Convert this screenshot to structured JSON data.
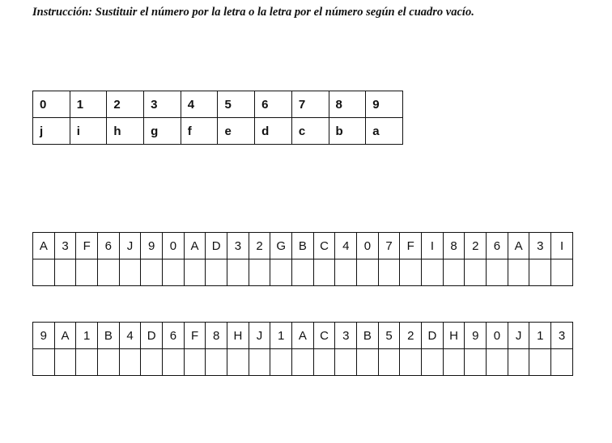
{
  "instruction": "Instrucción: Sustituir el número por la letra o la letra por el número según el cuadro vacío.",
  "key": {
    "numbers": [
      "0",
      "1",
      "2",
      "3",
      "4",
      "5",
      "6",
      "7",
      "8",
      "9"
    ],
    "letters": [
      "j",
      "i",
      "h",
      "g",
      "f",
      "e",
      "d",
      "c",
      "b",
      "a"
    ]
  },
  "exercises": [
    {
      "sequence": [
        "A",
        "3",
        "F",
        "6",
        "J",
        "9",
        "0",
        "A",
        "D",
        "3",
        "2",
        "G",
        "B",
        "C",
        "4",
        "0",
        "7",
        "F",
        "I",
        "8",
        "2",
        "6",
        "A",
        "3",
        "I"
      ]
    },
    {
      "sequence": [
        "9",
        "A",
        "1",
        "B",
        "4",
        "D",
        "6",
        "F",
        "8",
        "H",
        "J",
        "1",
        "A",
        "C",
        "3",
        "B",
        "5",
        "2",
        "D",
        "H",
        "9",
        "0",
        "J",
        "1",
        "3"
      ]
    }
  ]
}
